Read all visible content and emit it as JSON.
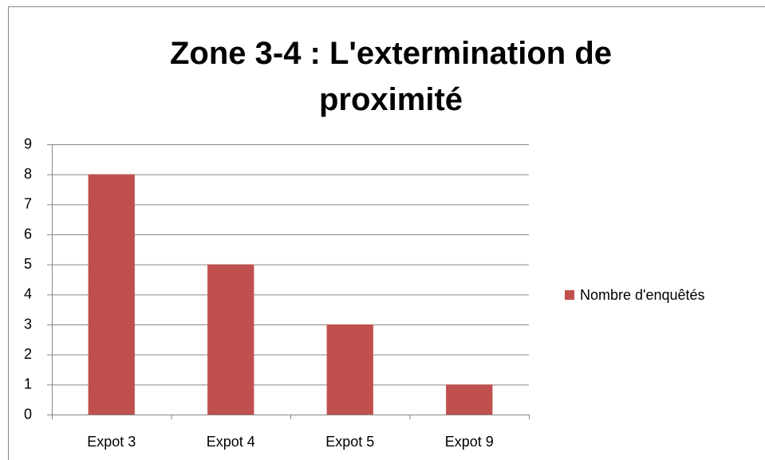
{
  "chart_data": {
    "type": "bar",
    "title": "Zone 3-4 : L'extermination de proximité",
    "categories": [
      "Expot 3",
      "Expot 4",
      "Expot 5",
      "Expot 9"
    ],
    "series": [
      {
        "name": "Nombre d'enquêtés",
        "color": "#c0504d",
        "values": [
          8,
          5,
          3,
          1
        ]
      }
    ],
    "ylim": [
      0,
      9
    ],
    "yticks": [
      0,
      1,
      2,
      3,
      4,
      5,
      6,
      7,
      8,
      9
    ],
    "grid": true,
    "legend": "right"
  }
}
